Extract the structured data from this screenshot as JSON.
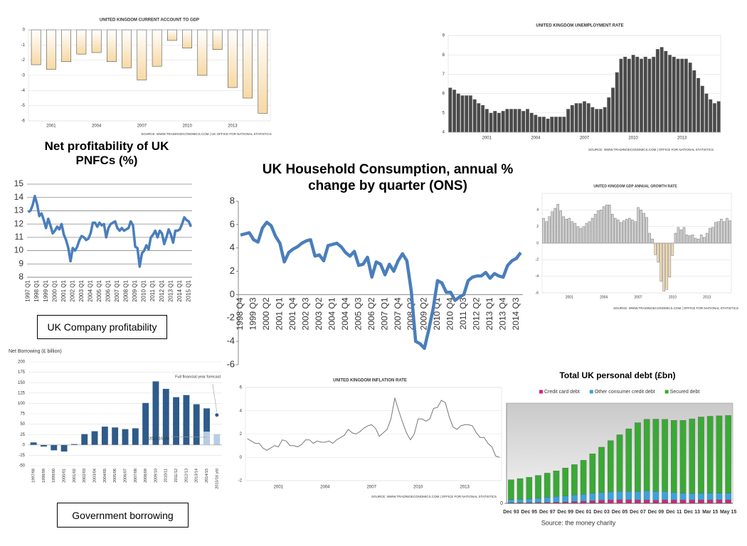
{
  "chart_data": [
    {
      "type": "bar",
      "title": "UNITED KINGDOM CURRENT ACCOUNT TO GDP",
      "source": "SOURCE: WWW.TRADINGECONOMICS.COM | UK OFFICE FOR NATIONAL STATISTICS",
      "categories": [
        null,
        "2001",
        null,
        null,
        "2004",
        null,
        null,
        "2007",
        null,
        null,
        "2010",
        null,
        null,
        "2013",
        null,
        null
      ],
      "values": [
        -2.3,
        -2.6,
        -2.1,
        -1.6,
        -1.5,
        -2.1,
        -2.5,
        -3.3,
        -2.4,
        -0.7,
        -1.2,
        -3.0,
        -1.3,
        -3.8,
        -4.5,
        -5.5
      ],
      "color": "#f7d9a4",
      "ylim": [
        -6,
        0
      ],
      "yticks": [
        0,
        -1,
        -2,
        -3,
        -4,
        -5,
        -6
      ],
      "grid": true
    },
    {
      "type": "bar",
      "title": "UNITED KINGDOM UNEMPLOYMENT RATE",
      "source": "SOURCE: WWW.TRADINGECONOMICS.COM | OFFICE FOR NATIONAL STATISTICS",
      "categories": [
        null,
        null,
        null,
        null,
        null,
        null,
        null,
        null,
        null,
        "2001",
        null,
        null,
        null,
        null,
        null,
        null,
        null,
        null,
        null,
        null,
        null,
        "2004",
        null,
        null,
        null,
        null,
        null,
        null,
        null,
        null,
        null,
        null,
        null,
        "2007",
        null,
        null,
        null,
        null,
        null,
        null,
        null,
        null,
        null,
        null,
        null,
        "2010",
        null,
        null,
        null,
        null,
        null,
        null,
        null,
        null,
        null,
        null,
        null,
        "2013",
        null,
        null,
        null,
        null,
        null,
        null,
        null,
        null,
        null
      ],
      "values": [
        6.3,
        6.2,
        6.0,
        5.9,
        5.9,
        5.9,
        5.7,
        5.5,
        5.4,
        5.2,
        5.0,
        5.1,
        5.0,
        5.1,
        5.2,
        5.2,
        5.2,
        5.2,
        5.1,
        5.2,
        5.0,
        4.9,
        4.8,
        4.8,
        4.7,
        4.8,
        4.8,
        4.8,
        4.8,
        5.2,
        5.4,
        5.5,
        5.5,
        5.6,
        5.5,
        5.3,
        5.2,
        5.2,
        5.3,
        5.8,
        6.3,
        7.1,
        7.8,
        7.9,
        7.8,
        8.0,
        7.9,
        7.8,
        7.9,
        7.8,
        7.9,
        8.3,
        8.4,
        8.2,
        8.0,
        7.9,
        7.8,
        7.8,
        7.8,
        7.6,
        7.2,
        6.8,
        6.4,
        6.0,
        5.7,
        5.5,
        5.6
      ],
      "color": "#4a4a4a",
      "ylim": [
        4,
        9
      ],
      "yticks": [
        4,
        5,
        6,
        7,
        8,
        9
      ],
      "grid": true
    },
    {
      "type": "line",
      "title": "Net profitability of UK PNFCs (%)",
      "note": "UK Company profitability",
      "categories": [
        "1997 Q1",
        null,
        null,
        null,
        "1998 Q1",
        null,
        null,
        null,
        "1999 Q1",
        null,
        null,
        null,
        "2000 Q1",
        null,
        null,
        null,
        "2001 Q1",
        null,
        null,
        null,
        "2002 Q1",
        null,
        null,
        null,
        "2003 Q1",
        null,
        null,
        null,
        "2004 Q1",
        null,
        null,
        null,
        "2005 Q1",
        null,
        null,
        null,
        "2006 Q1",
        null,
        null,
        null,
        "2007 Q1",
        null,
        null,
        null,
        "2008 Q1",
        null,
        null,
        null,
        "2009 Q1",
        null,
        null,
        null,
        "2010 Q1",
        null,
        null,
        null,
        "2011 Q1",
        null,
        null,
        null,
        "2012 Q1",
        null,
        null,
        null,
        "2013 Q1",
        null,
        null,
        null,
        "2014 Q1",
        null,
        null,
        null,
        "2015 Q1",
        null
      ],
      "values": [
        12.9,
        13.0,
        13.4,
        14.1,
        13.5,
        12.6,
        12.8,
        12.3,
        11.7,
        12.4,
        11.9,
        11.3,
        11.5,
        11.8,
        11.6,
        12.0,
        11.2,
        10.8,
        10.2,
        9.2,
        10.2,
        10.0,
        10.3,
        10.8,
        11.1,
        11.0,
        10.8,
        10.9,
        11.3,
        12.1,
        12.1,
        11.8,
        12.1,
        11.9,
        12.0,
        11.0,
        11.7,
        12.0,
        12.1,
        12.2,
        11.7,
        11.5,
        11.7,
        11.5,
        11.6,
        11.7,
        12.2,
        11.9,
        10.3,
        10.2,
        8.8,
        9.8,
        10.0,
        10.4,
        10.1,
        11.0,
        11.2,
        11.5,
        11.0,
        11.5,
        11.3,
        10.5,
        11.0,
        11.6,
        11.2,
        10.6,
        11.5,
        11.5,
        11.6,
        12.0,
        12.5,
        12.3,
        12.2,
        11.8
      ],
      "color": "#4a7ebb",
      "ylim": [
        8,
        15
      ],
      "yticks": [
        8,
        9,
        10,
        11,
        12,
        13,
        14,
        15
      ],
      "grid": true
    },
    {
      "type": "line",
      "title": "UK Household Consumption, annual % change by quarter (ONS)",
      "categories": [
        "1998 Q4",
        null,
        null,
        "1999 Q3",
        null,
        null,
        "2000 Q2",
        null,
        null,
        "2001 Q1",
        null,
        null,
        "2001 Q4",
        null,
        null,
        "2002 Q3",
        null,
        null,
        "2003 Q2",
        null,
        null,
        "2004 Q1",
        null,
        null,
        "2004 Q4",
        null,
        null,
        "2005 Q3",
        null,
        null,
        "2006 Q2",
        null,
        null,
        "2007 Q1",
        null,
        null,
        "2007 Q4",
        null,
        null,
        "2008 Q3",
        null,
        null,
        "2009 Q2",
        null,
        null,
        "2010 Q1",
        null,
        null,
        "2010 Q4",
        null,
        null,
        "2011 Q3",
        null,
        null,
        "2012 Q2",
        null,
        null,
        "2013 Q1",
        null,
        null,
        "2013 Q4",
        null,
        null,
        "2014 Q3",
        null
      ],
      "values": [
        5.1,
        5.2,
        5.3,
        4.7,
        4.5,
        5.7,
        6.2,
        5.9,
        5.0,
        4.4,
        2.8,
        3.6,
        3.9,
        4.1,
        4.4,
        4.6,
        4.7,
        3.3,
        3.4,
        2.9,
        4.2,
        4.3,
        4.4,
        4.1,
        3.6,
        3.3,
        3.7,
        2.5,
        2.6,
        3.2,
        1.5,
        2.8,
        2.6,
        1.7,
        2.6,
        2.0,
        2.9,
        3.5,
        2.9,
        0.3,
        -4.0,
        -4.2,
        -4.6,
        -3.0,
        -1.2,
        1.2,
        1.0,
        0.2,
        0.2,
        -0.5,
        -0.2,
        0.0,
        1.2,
        1.5,
        1.6,
        1.6,
        1.9,
        1.4,
        1.8,
        1.6,
        1.5,
        2.5,
        2.9,
        3.1,
        3.6
      ],
      "color": "#4a7ebb",
      "ylim": [
        -6,
        8
      ],
      "yticks": [
        -6,
        -4,
        -2,
        0,
        2,
        4,
        6,
        8
      ],
      "grid": false
    },
    {
      "type": "bar",
      "title": "UNITED KINGDOM GDP ANNUAL GROWTH RATE",
      "source": "SOURCE: WWW.TRADINGECONOMICS.COM | OFFICE FOR NATIONAL STATISTICS",
      "categories": [
        null,
        null,
        null,
        null,
        null,
        null,
        null,
        null,
        null,
        "2001",
        null,
        null,
        null,
        null,
        null,
        null,
        null,
        null,
        null,
        null,
        null,
        "2004",
        null,
        null,
        null,
        null,
        null,
        null,
        null,
        null,
        null,
        null,
        null,
        "2007",
        null,
        null,
        null,
        null,
        null,
        null,
        null,
        null,
        null,
        null,
        null,
        "2010",
        null,
        null,
        null,
        null,
        null,
        null,
        null,
        null,
        null,
        null,
        null,
        "2013",
        null,
        null,
        null,
        null,
        null,
        null,
        null,
        null
      ],
      "values": [
        3.0,
        2.6,
        3.2,
        3.8,
        4.2,
        4.7,
        3.9,
        3.2,
        2.9,
        3.0,
        2.6,
        2.4,
        2.0,
        1.8,
        2.0,
        2.4,
        2.6,
        3.0,
        3.5,
        3.9,
        4.0,
        4.4,
        4.6,
        4.6,
        3.5,
        3.0,
        2.8,
        2.5,
        2.7,
        2.9,
        3.0,
        2.8,
        2.6,
        4.3,
        4.0,
        3.6,
        3.1,
        1.2,
        0.5,
        -1.4,
        -2.3,
        -4.6,
        -5.8,
        -5.6,
        -4.1,
        -1.5,
        1.2,
        1.9,
        1.6,
        1.9,
        1.0,
        0.9,
        1.0,
        0.6,
        0.5,
        1.0,
        0.7,
        1.2,
        1.8,
        1.9,
        2.5,
        2.6,
        2.9,
        2.6,
        3.0,
        2.7
      ],
      "color": "#d0d0d0",
      "negative_color": "#f2dcb4",
      "ylim": [
        -6,
        6
      ],
      "yticks": [
        -6,
        -4,
        -2,
        0,
        2,
        4
      ],
      "grid": true
    },
    {
      "type": "bar",
      "y_label": "Net Borrowing (£ billion)",
      "note": "Government borrowing",
      "categories": [
        "1997/98",
        "1998/99",
        "1999/00",
        "2000/01",
        "2001/02",
        "2002/03",
        "2003/04",
        "2004/05",
        "2005/06",
        "2006/07",
        "2007/08",
        "2008/09",
        "2009/10",
        "2010/11",
        "2011/12",
        "2012/13",
        "2013/14",
        "2014/15",
        "2015/16 ytd"
      ],
      "values": [
        6,
        -4,
        -13,
        -16,
        2,
        26,
        33,
        44,
        42,
        38,
        40,
        101,
        153,
        135,
        115,
        120,
        98,
        88,
        26
      ],
      "colors": [
        "#2e5b8a",
        "#2e5b8a",
        "#2e5b8a",
        "#2e5b8a",
        "#2e5b8a",
        "#2e5b8a",
        "#2e5b8a",
        "#2e5b8a",
        "#2e5b8a",
        "#2e5b8a",
        "#2e5b8a",
        "#2e5b8a",
        "#2e5b8a",
        "#2e5b8a",
        "#2e5b8a",
        "#2e5b8a",
        "#2e5b8a",
        "#2e5b8a",
        "#b8cde4"
      ],
      "annotations": [
        {
          "text": "Full financial year forecast",
          "category": "2015/16 ytd",
          "value": 72
        },
        {
          "text": "2014-15 ytd",
          "category": "2014/15",
          "value": 32,
          "color": "#b8cde4"
        }
      ],
      "ylim": [
        -50,
        200
      ],
      "yticks": [
        -50,
        -25,
        0,
        25,
        50,
        75,
        100,
        125,
        150,
        175,
        200
      ],
      "grid": true
    },
    {
      "type": "line",
      "title": "UNITED KINGDOM INFLATION RATE",
      "source": "SOURCE: WWW.TRADINGECONOMICS.COM | OFFICE FOR NATIONAL STATISTICS",
      "categories": [
        null,
        null,
        null,
        null,
        null,
        null,
        null,
        null,
        "2001",
        null,
        null,
        null,
        null,
        null,
        null,
        null,
        null,
        null,
        null,
        null,
        "2004",
        null,
        null,
        null,
        null,
        null,
        null,
        null,
        null,
        null,
        null,
        null,
        "2007",
        null,
        null,
        null,
        null,
        null,
        null,
        null,
        null,
        null,
        null,
        null,
        "2010",
        null,
        null,
        null,
        null,
        null,
        null,
        null,
        null,
        null,
        null,
        null,
        "2013",
        null,
        null,
        null,
        null,
        null,
        null,
        null,
        null,
        null
      ],
      "values": [
        1.6,
        1.4,
        1.2,
        1.2,
        0.8,
        0.6,
        0.8,
        1.0,
        0.9,
        1.5,
        1.4,
        1.0,
        1.0,
        0.9,
        1.1,
        1.5,
        1.5,
        1.2,
        1.4,
        1.3,
        1.3,
        1.4,
        1.2,
        1.5,
        1.7,
        1.9,
        2.4,
        2.1,
        2.0,
        2.2,
        2.5,
        2.7,
        2.8,
        2.5,
        1.8,
        2.1,
        2.4,
        3.3,
        5.1,
        4.0,
        3.0,
        2.1,
        1.5,
        2.0,
        3.3,
        3.3,
        3.1,
        3.3,
        4.2,
        4.3,
        4.9,
        4.7,
        3.5,
        2.6,
        2.4,
        2.7,
        2.8,
        2.8,
        2.7,
        2.1,
        1.7,
        1.7,
        1.2,
        0.9,
        0.1,
        0.0
      ],
      "color": "#777777",
      "ylim": [
        -2,
        6
      ],
      "yticks": [
        -2,
        0,
        2,
        4,
        6
      ],
      "grid": true
    },
    {
      "type": "stacked_bar",
      "title": "Total UK personal debt (£bn)",
      "source": "Source: the money charity",
      "categories": [
        "Dec 93",
        null,
        "Dec 95",
        null,
        "Dec 97",
        null,
        "Dec 99",
        null,
        "Dec 01",
        null,
        "Dec 03",
        null,
        "Dec 05",
        null,
        "Dec 07",
        null,
        "Dec 09",
        null,
        "Dec 11",
        null,
        "Dec 13",
        null,
        "Mar 15",
        null,
        "May 15"
      ],
      "series": [
        {
          "name": "Credit card debt",
          "color": "#d6237a",
          "values": [
            10,
            11,
            12,
            14,
            17,
            20,
            24,
            30,
            37,
            45,
            52,
            57,
            60,
            60,
            57,
            55,
            52,
            58,
            57,
            57,
            57,
            58,
            58,
            59,
            59
          ]
        },
        {
          "name": "Other consumer credit debt",
          "color": "#3ba3d9",
          "values": [
            55,
            60,
            65,
            75,
            85,
            95,
            100,
            110,
            115,
            125,
            130,
            135,
            140,
            140,
            145,
            155,
            150,
            140,
            125,
            115,
            110,
            110,
            112,
            113,
            114
          ]
        },
        {
          "name": "Secured debt",
          "color": "#3aa935",
          "values": [
            330,
            345,
            360,
            380,
            405,
            430,
            470,
            510,
            570,
            660,
            760,
            860,
            950,
            1050,
            1150,
            1200,
            1210,
            1210,
            1210,
            1220,
            1250,
            1280,
            1290,
            1295,
            1300
          ]
        }
      ],
      "ylim": [
        0,
        1680
      ],
      "yticks": [
        0
      ],
      "legend": "top"
    }
  ]
}
